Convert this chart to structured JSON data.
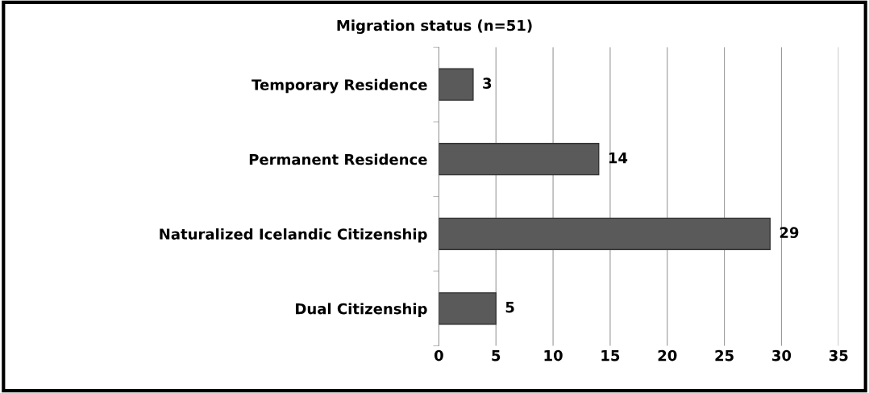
{
  "chart_data": {
    "type": "bar",
    "orientation": "horizontal",
    "title": "Migration status (n=51)",
    "categories": [
      "Temporary Residence",
      "Permanent Residence",
      "Naturalized Icelandic Citizenship",
      "Dual Citizenship"
    ],
    "values": [
      3,
      14,
      29,
      5
    ],
    "color": "#5a5a5a",
    "xlim": [
      0,
      35
    ],
    "xticks": [
      0,
      5,
      10,
      15,
      20,
      25,
      30,
      35
    ],
    "grid": "x",
    "data_labels": true
  }
}
